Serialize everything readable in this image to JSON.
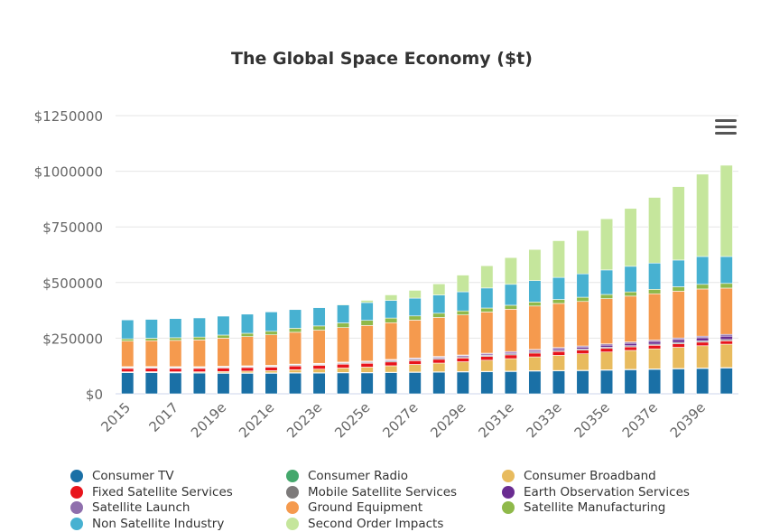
{
  "chart_data": {
    "type": "bar",
    "stacked": true,
    "title": "The Global Space Economy ($t)",
    "xlabel": "",
    "ylabel": "",
    "ylim": [
      0,
      1250000
    ],
    "yticks": [
      0,
      250000,
      500000,
      750000,
      1000000,
      1250000
    ],
    "ytick_labels": [
      "$0",
      "$250000",
      "$500000",
      "$750000",
      "$1000000",
      "$1250000"
    ],
    "grid": true,
    "legend_position": "bottom",
    "categories": [
      "2015",
      "2016",
      "2017",
      "2018",
      "2019e",
      "2020e",
      "2021e",
      "2022e",
      "2023e",
      "2024e",
      "2025e",
      "2026e",
      "2027e",
      "2028e",
      "2029e",
      "2030e",
      "2031e",
      "2032e",
      "2033e",
      "2034e",
      "2035e",
      "2036e",
      "2037e",
      "2038e",
      "2039e",
      "2040e"
    ],
    "xtick_labels": [
      "2015",
      "2017",
      "2019e",
      "2021e",
      "2023e",
      "2025e",
      "2027e",
      "2029e",
      "2031e",
      "2033e",
      "2035e",
      "2037e",
      "2039e"
    ],
    "series": [
      {
        "name": "Consumer TV",
        "color": "#1a70a6",
        "values": [
          95000,
          95000,
          94000,
          93000,
          92000,
          92000,
          92000,
          93000,
          93000,
          94000,
          94000,
          95000,
          96000,
          97000,
          98000,
          99000,
          100000,
          102000,
          103000,
          104000,
          106000,
          108000,
          110000,
          112000,
          114000,
          116000
        ]
      },
      {
        "name": "Consumer Radio",
        "color": "#44a86c",
        "values": [
          2000,
          2000,
          2000,
          2000,
          2000,
          2000,
          2000,
          2000,
          2000,
          2000,
          2000,
          2000,
          2000,
          2000,
          2000,
          2000,
          2000,
          2000,
          2000,
          2000,
          2000,
          2000,
          2000,
          2000,
          2000,
          2000
        ]
      },
      {
        "name": "Consumer Broadband",
        "color": "#e8bb5e",
        "values": [
          2000,
          2500,
          3000,
          4000,
          6000,
          8000,
          10000,
          13000,
          16000,
          20000,
          24000,
          29000,
          34000,
          39000,
          44000,
          50000,
          56000,
          62000,
          68000,
          74000,
          80000,
          85000,
          90000,
          95000,
          100000,
          105000
        ]
      },
      {
        "name": "Fixed Satellite Services",
        "color": "#e8141c",
        "values": [
          15000,
          15000,
          15000,
          15000,
          16000,
          16000,
          16000,
          17000,
          17000,
          17000,
          17000,
          17000,
          17000,
          17000,
          17000,
          17000,
          17000,
          17000,
          17000,
          16000,
          16000,
          16000,
          16000,
          16000,
          16000,
          15000
        ]
      },
      {
        "name": "Mobile Satellite Services",
        "color": "#7d7a7a",
        "values": [
          4000,
          4000,
          4000,
          4000,
          4000,
          4000,
          4000,
          4000,
          4000,
          4000,
          4000,
          5000,
          5000,
          5000,
          5000,
          5000,
          5000,
          5000,
          5000,
          5000,
          5000,
          5000,
          5000,
          6000,
          6000,
          6000
        ]
      },
      {
        "name": "Earth Observation Services",
        "color": "#6a2c91",
        "values": [
          2000,
          2000,
          2000,
          2000,
          2000,
          2000,
          2000,
          2500,
          2500,
          3000,
          3000,
          3500,
          4000,
          4500,
          5000,
          5500,
          6000,
          7000,
          8000,
          9000,
          10000,
          11000,
          12000,
          13000,
          14000,
          15000
        ]
      },
      {
        "name": "Satellite Launch",
        "color": "#8f6fad",
        "values": [
          2000,
          2000,
          2000,
          2000,
          2000,
          2000,
          2000,
          2000,
          2500,
          2500,
          3000,
          3000,
          3000,
          3500,
          3500,
          4000,
          4000,
          4500,
          5000,
          5000,
          5500,
          6000,
          6500,
          7000,
          7000,
          8000
        ]
      },
      {
        "name": "Ground Equipment",
        "color": "#f59a4e",
        "values": [
          115000,
          116000,
          118000,
          120000,
          126000,
          131000,
          137000,
          143000,
          149000,
          155000,
          160000,
          165000,
          170000,
          175000,
          180000,
          185000,
          190000,
          195000,
          198000,
          200000,
          203000,
          206000,
          208000,
          210000,
          212000,
          208000
        ]
      },
      {
        "name": "Satellite Manufacturing",
        "color": "#8fb94a",
        "values": [
          10000,
          11000,
          12000,
          13000,
          14000,
          15000,
          16000,
          18000,
          19000,
          21000,
          23000,
          21000,
          19000,
          19000,
          18000,
          18000,
          18000,
          18000,
          18000,
          19000,
          19000,
          19000,
          20000,
          20000,
          21000,
          21000
        ]
      },
      {
        "name": "Non Satellite Industry",
        "color": "#47b1d1",
        "values": [
          85000,
          85000,
          86000,
          86000,
          85000,
          86000,
          87000,
          84000,
          82000,
          81000,
          80000,
          79000,
          80000,
          82000,
          86000,
          90000,
          94000,
          96000,
          99000,
          105000,
          110000,
          115000,
          118000,
          120000,
          125000,
          121000
        ]
      },
      {
        "name": "Second Order Impacts",
        "color": "#c5e69c",
        "values": [
          0,
          0,
          0,
          0,
          0,
          0,
          0,
          0,
          0,
          3000,
          10000,
          25000,
          35000,
          50000,
          75000,
          100000,
          120000,
          140000,
          165000,
          195000,
          230000,
          260000,
          295000,
          330000,
          370000,
          410000
        ]
      }
    ]
  },
  "menu_icon": "hamburger-menu-icon"
}
